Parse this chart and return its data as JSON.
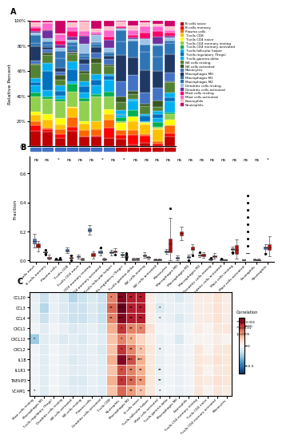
{
  "cell_types": [
    "B cells naive",
    "B cells memory",
    "Plasma cells",
    "T cells CD8",
    "T cells CD4 naive",
    "T cells CD4 memory resting",
    "T cells CD4 memory activated",
    "T cells follicular helper",
    "T cells regulatory (Tregs)",
    "T cells gamma delta",
    "NK cells resting",
    "NK cells activated",
    "Monocytes",
    "Macrophages M0",
    "Macrophages M1",
    "Macrophages M2",
    "Dendritic cells resting",
    "Dendritic cells activated",
    "Mast cells resting",
    "Mast cells activated",
    "Eosinophils",
    "Neutrophils"
  ],
  "cell_colors": [
    "#C00000",
    "#FF0000",
    "#FF6600",
    "#FFC000",
    "#FFFF00",
    "#92D050",
    "#00B050",
    "#00B0F0",
    "#0070C0",
    "#00B0F0",
    "#548235",
    "#375623",
    "#4472C4",
    "#1F3864",
    "#2E75B6",
    "#2E75B6",
    "#9DC3E6",
    "#7030A0",
    "#FF0066",
    "#FF66CC",
    "#FFC0CB",
    "#CC0066"
  ],
  "significance_B": [
    "ns",
    "ns",
    "*",
    "ns",
    "ns",
    "ns",
    "*",
    "ns",
    "*",
    "ns",
    "ns",
    "ns",
    "ns",
    "ns",
    "ns",
    "ns",
    "ns",
    "ns",
    "ns",
    "ns",
    "ns",
    "*"
  ],
  "genes": [
    "CCL20",
    "CCL3",
    "CCL4",
    "CXCL1",
    "CXCL12",
    "CXCL2",
    "IL1B",
    "IL1R1",
    "TNFAIP3",
    "VCAM1"
  ],
  "immune_cells_C": [
    "Mast cells resting",
    "Macrophages M1",
    "T cells regulatory (Tregs)",
    "Dendritic cells resting",
    "NK cells activated",
    "NK cells resting",
    "Plasma cells",
    "Dendritic cells activated",
    "T cells CD8",
    "Neutrophils",
    "Macrophages M2",
    "B cells naive",
    "T cells follicular helper",
    "Mast cells activated",
    "T cells gamma delta",
    "Macrophages M0",
    "Eosinophils",
    "T cells CD4 memory resting",
    "T cells CD4 naive",
    "T cells CD4 memory activated",
    "Monocytes"
  ],
  "corr_matrix": [
    [
      -0.05,
      -0.15,
      -0.05,
      -0.1,
      -0.2,
      -0.15,
      -0.1,
      -0.15,
      0.35,
      0.65,
      0.55,
      0.55,
      0.05,
      -0.05,
      -0.05,
      -0.1,
      -0.05,
      0.05,
      0.05,
      0.1,
      0.05
    ],
    [
      -0.05,
      -0.2,
      -0.05,
      -0.1,
      -0.15,
      -0.15,
      -0.1,
      -0.15,
      0.4,
      0.7,
      0.55,
      0.55,
      0.05,
      -0.1,
      -0.05,
      -0.05,
      -0.05,
      0.05,
      0.05,
      0.1,
      0.05
    ],
    [
      -0.05,
      -0.15,
      -0.05,
      -0.1,
      -0.15,
      -0.15,
      -0.1,
      -0.15,
      0.35,
      0.65,
      0.55,
      0.55,
      0.05,
      -0.05,
      -0.05,
      -0.1,
      -0.05,
      0.05,
      0.05,
      0.1,
      0.05
    ],
    [
      -0.02,
      -0.08,
      -0.02,
      -0.05,
      -0.1,
      -0.08,
      -0.05,
      -0.1,
      0.25,
      0.5,
      0.35,
      0.35,
      0.1,
      -0.02,
      -0.02,
      -0.05,
      -0.02,
      0.05,
      0.02,
      0.08,
      0.08
    ],
    [
      -0.25,
      -0.08,
      -0.05,
      -0.1,
      -0.08,
      -0.1,
      -0.05,
      -0.08,
      0.2,
      0.35,
      0.25,
      0.15,
      0.05,
      -0.05,
      -0.02,
      -0.1,
      -0.02,
      0.02,
      0.02,
      0.05,
      0.02
    ],
    [
      -0.02,
      -0.08,
      -0.02,
      -0.05,
      -0.08,
      -0.08,
      -0.05,
      -0.1,
      0.2,
      0.5,
      0.35,
      0.2,
      0.08,
      -0.05,
      -0.02,
      -0.05,
      -0.02,
      0.08,
      0.02,
      0.08,
      0.08
    ],
    [
      -0.02,
      -0.08,
      -0.02,
      -0.05,
      -0.1,
      -0.08,
      -0.05,
      -0.08,
      0.25,
      0.65,
      0.45,
      0.25,
      0.08,
      -0.05,
      -0.02,
      -0.05,
      -0.02,
      0.08,
      0.05,
      0.1,
      0.08
    ],
    [
      -0.02,
      -0.08,
      -0.02,
      -0.05,
      -0.08,
      -0.08,
      -0.05,
      -0.08,
      0.2,
      0.45,
      0.35,
      0.25,
      0.08,
      -0.05,
      -0.02,
      -0.05,
      -0.02,
      0.08,
      0.02,
      0.08,
      0.08
    ],
    [
      -0.02,
      -0.08,
      -0.02,
      -0.05,
      -0.1,
      -0.1,
      -0.05,
      -0.08,
      0.25,
      0.5,
      0.4,
      0.3,
      0.08,
      -0.05,
      -0.02,
      -0.05,
      -0.02,
      0.08,
      0.05,
      0.1,
      0.08
    ],
    [
      -0.02,
      -0.08,
      -0.02,
      -0.05,
      -0.08,
      -0.08,
      -0.05,
      -0.08,
      0.2,
      0.4,
      0.3,
      0.2,
      0.08,
      -0.02,
      -0.02,
      -0.05,
      -0.02,
      0.08,
      0.02,
      0.08,
      0.05
    ]
  ],
  "sig_matrix": [
    [
      "",
      "",
      "",
      "",
      "",
      "",
      "",
      "",
      "*",
      "***",
      "**",
      "**",
      "",
      "",
      "",
      "",
      "",
      "",
      "",
      "",
      ""
    ],
    [
      "",
      "",
      "",
      "",
      "",
      "",
      "",
      "",
      "**",
      "***",
      "**",
      "**",
      "",
      "*",
      "",
      "",
      "",
      "",
      "",
      "",
      ""
    ],
    [
      "",
      "",
      "",
      "",
      "",
      "",
      "",
      "",
      "**",
      "***",
      "**",
      "**",
      "",
      "*",
      "",
      "",
      "",
      "",
      "",
      "",
      ""
    ],
    [
      "",
      "",
      "",
      "",
      "",
      "",
      "",
      "",
      "",
      "*",
      "**",
      "*",
      "",
      "",
      "",
      "",
      "",
      "",
      "",
      "",
      ""
    ],
    [
      "*",
      "",
      "",
      "",
      "",
      "",
      "",
      "",
      "",
      "*",
      "*",
      "",
      "",
      "",
      "",
      "",
      "",
      "",
      "",
      "",
      ""
    ],
    [
      "",
      "",
      "",
      "",
      "",
      "",
      "",
      "",
      "",
      "*",
      "**",
      "*",
      "",
      "*",
      "",
      "",
      "",
      "",
      "",
      "",
      ""
    ],
    [
      "",
      "",
      "",
      "",
      "",
      "",
      "",
      "",
      "",
      "*",
      "***",
      "***",
      "",
      "",
      "",
      "",
      "",
      "",
      "",
      "",
      ""
    ],
    [
      "",
      "",
      "",
      "",
      "",
      "",
      "",
      "",
      "",
      "*",
      "**",
      "**",
      "",
      "**",
      "",
      "",
      "",
      "",
      "",
      "",
      ""
    ],
    [
      "",
      "",
      "",
      "",
      "",
      "",
      "",
      "",
      "",
      "*",
      "**",
      "**",
      "",
      "**",
      "",
      "",
      "",
      "",
      "",
      "",
      ""
    ],
    [
      "*",
      "",
      "",
      "",
      "",
      "",
      "",
      "",
      "",
      "",
      "**",
      "*",
      "",
      "*",
      "",
      "",
      "",
      "",
      "",
      "",
      ""
    ]
  ],
  "n_con": 7,
  "n_ich": 5,
  "con_seed": 10,
  "ich_seed": 20,
  "con_color": "#4472C4",
  "ich_color": "#C00000"
}
